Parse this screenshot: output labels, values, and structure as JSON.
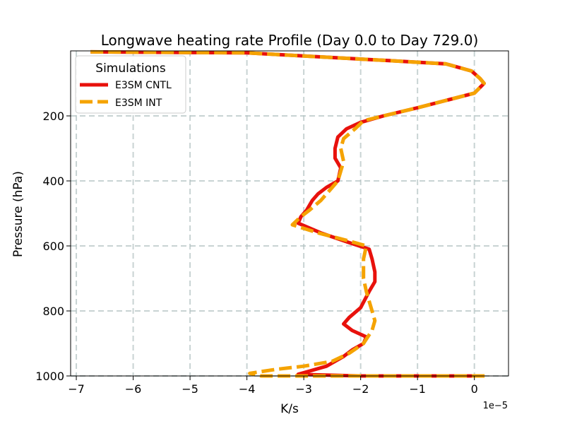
{
  "chart_data": {
    "type": "line",
    "title": "Longwave heating rate Profile (Day 0.0 to Day 729.0)",
    "xlabel": "K/s",
    "ylabel": "Pressure (hPa)",
    "x_offset_label": "1e−5",
    "x_scale": 1e-05,
    "xlim": [
      -7.1,
      0.6
    ],
    "ylim": [
      1000,
      0
    ],
    "y_inverted": true,
    "grid": true,
    "xticks": [
      -7,
      -6,
      -5,
      -4,
      -3,
      -2,
      -1,
      0
    ],
    "xtick_labels": [
      "−7",
      "−6",
      "−5",
      "−4",
      "−3",
      "−2",
      "−1",
      "0"
    ],
    "yticks": [
      200,
      400,
      600,
      800,
      1000
    ],
    "ytick_labels": [
      "200",
      "400",
      "600",
      "800",
      "1000"
    ],
    "legend": {
      "title": "Simulations",
      "position": "upper-left"
    },
    "series": [
      {
        "name": "E3SM CNTL",
        "color": "#e8110c",
        "style": "solid",
        "points": [
          [
            -6.75,
            3
          ],
          [
            -4.0,
            6
          ],
          [
            -1.5,
            30
          ],
          [
            -0.5,
            40
          ],
          [
            -0.05,
            62
          ],
          [
            0.1,
            85
          ],
          [
            0.17,
            100
          ],
          [
            0.0,
            130
          ],
          [
            -1.0,
            175
          ],
          [
            -1.6,
            200
          ],
          [
            -2.0,
            220
          ],
          [
            -2.25,
            240
          ],
          [
            -2.4,
            265
          ],
          [
            -2.45,
            300
          ],
          [
            -2.45,
            330
          ],
          [
            -2.35,
            360
          ],
          [
            -2.4,
            400
          ],
          [
            -2.6,
            420
          ],
          [
            -2.75,
            440
          ],
          [
            -2.85,
            460
          ],
          [
            -2.95,
            490
          ],
          [
            -3.05,
            510
          ],
          [
            -3.1,
            530
          ],
          [
            -2.7,
            560
          ],
          [
            -2.2,
            590
          ],
          [
            -1.85,
            610
          ],
          [
            -1.8,
            640
          ],
          [
            -1.75,
            680
          ],
          [
            -1.75,
            710
          ],
          [
            -1.85,
            740
          ],
          [
            -2.0,
            790
          ],
          [
            -2.2,
            820
          ],
          [
            -2.3,
            840
          ],
          [
            -2.15,
            860
          ],
          [
            -1.9,
            880
          ],
          [
            -1.95,
            900
          ],
          [
            -2.15,
            920
          ],
          [
            -2.3,
            940
          ],
          [
            -2.6,
            970
          ],
          [
            -2.9,
            985
          ],
          [
            -3.1,
            995
          ],
          [
            -2.0,
            1000
          ],
          [
            0.0,
            1000
          ]
        ]
      },
      {
        "name": "E3SM INT",
        "color": "#f5a300",
        "style": "dashed",
        "points": [
          [
            -6.75,
            3
          ],
          [
            -4.0,
            6
          ],
          [
            -1.5,
            30
          ],
          [
            -0.5,
            40
          ],
          [
            -0.05,
            62
          ],
          [
            0.1,
            85
          ],
          [
            0.17,
            100
          ],
          [
            0.0,
            130
          ],
          [
            -1.0,
            175
          ],
          [
            -1.6,
            200
          ],
          [
            -1.95,
            215
          ],
          [
            -2.1,
            240
          ],
          [
            -2.3,
            270
          ],
          [
            -2.35,
            300
          ],
          [
            -2.3,
            340
          ],
          [
            -2.35,
            370
          ],
          [
            -2.4,
            400
          ],
          [
            -2.55,
            430
          ],
          [
            -2.7,
            460
          ],
          [
            -2.9,
            490
          ],
          [
            -3.05,
            510
          ],
          [
            -3.2,
            535
          ],
          [
            -2.75,
            560
          ],
          [
            -2.2,
            585
          ],
          [
            -1.9,
            600
          ],
          [
            -1.95,
            640
          ],
          [
            -1.95,
            700
          ],
          [
            -1.9,
            740
          ],
          [
            -1.85,
            770
          ],
          [
            -1.8,
            800
          ],
          [
            -1.75,
            830
          ],
          [
            -1.8,
            860
          ],
          [
            -1.95,
            900
          ],
          [
            -2.2,
            930
          ],
          [
            -2.5,
            955
          ],
          [
            -3.0,
            970
          ],
          [
            -3.5,
            980
          ],
          [
            -3.95,
            992
          ],
          [
            -3.75,
            1000
          ],
          [
            0.2,
            1000
          ]
        ]
      }
    ]
  }
}
